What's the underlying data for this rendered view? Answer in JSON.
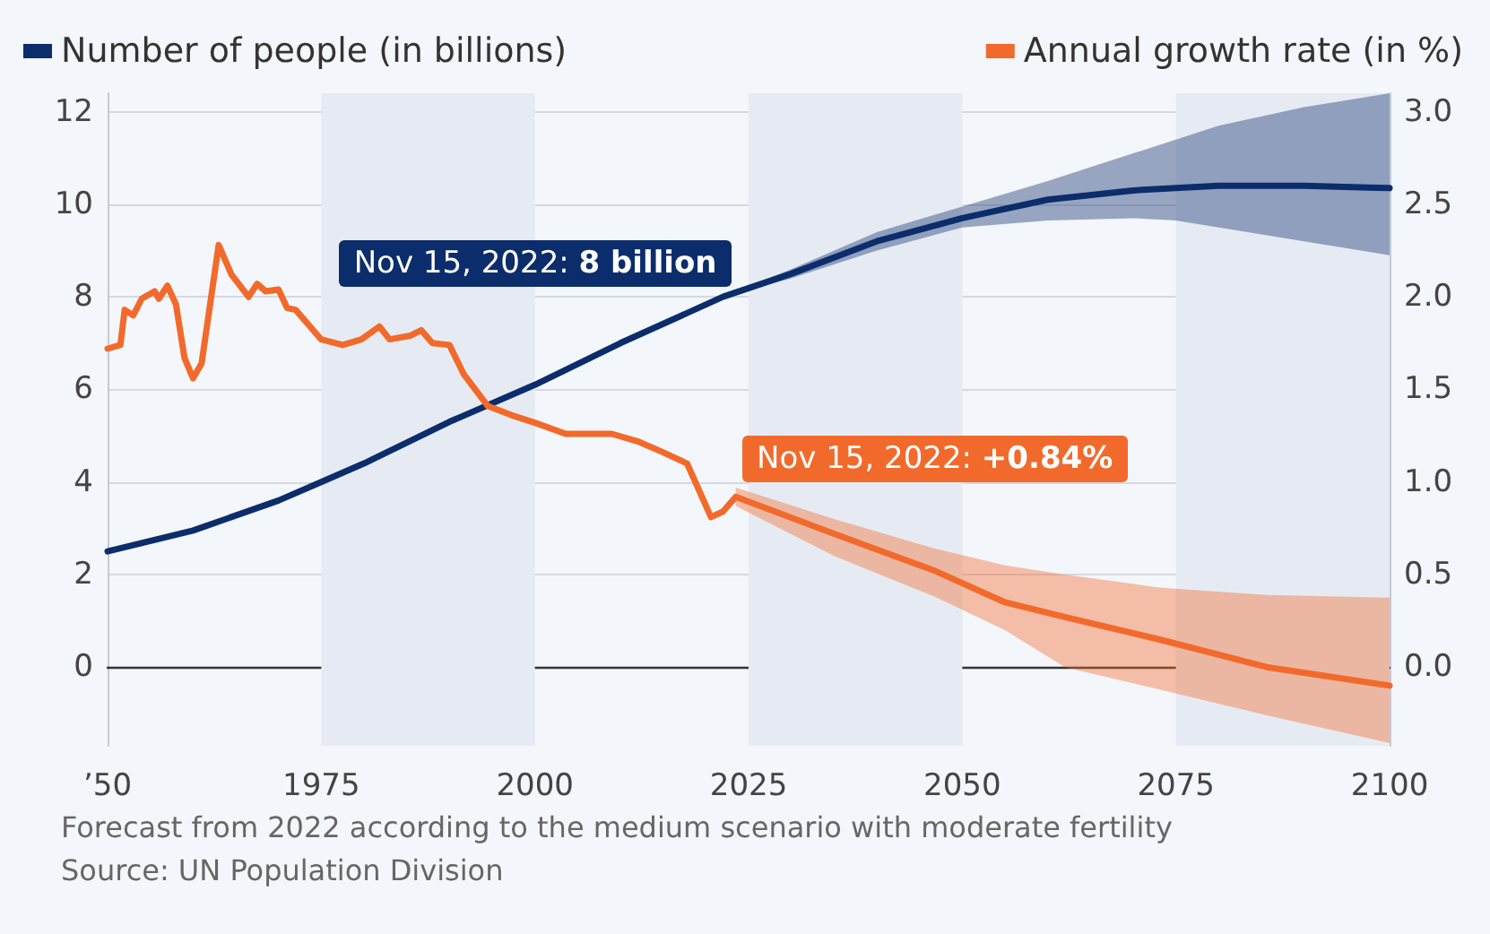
{
  "chart_data": {
    "type": "line",
    "legend": "top",
    "grid": "y",
    "marker": "none",
    "line_style": "solid",
    "xlim": [
      1950,
      2100
    ],
    "xticks": [
      {
        "value": 1950,
        "label": "’50"
      },
      1975,
      2000,
      2025,
      2050,
      2075,
      2100
    ],
    "ylim": [
      -1.7,
      12.4
    ],
    "yticks": [
      0,
      2,
      4,
      6,
      8,
      10,
      12
    ],
    "y2lim": [
      -0.425,
      3.1
    ],
    "y2ticks": [
      {
        "value": 0,
        "label": "0.0"
      },
      0.5,
      {
        "value": 1,
        "label": "1.0"
      },
      1.5,
      {
        "value": 2,
        "label": "2.0"
      },
      2.5,
      {
        "value": 3,
        "label": "3.0"
      }
    ],
    "series": [
      {
        "name": "Number of people (in billions)",
        "color": "#0c2d6b",
        "x": [
          1950,
          1960,
          1970,
          1975,
          1980,
          1990,
          2000,
          2010,
          2022,
          2030,
          2040,
          2050,
          2060,
          2070,
          2075,
          2080,
          2090,
          2100
        ],
        "values": [
          2.5,
          2.95,
          3.6,
          4.0,
          4.4,
          5.3,
          6.1,
          7.0,
          8.0,
          8.5,
          9.2,
          9.7,
          10.1,
          10.3,
          10.35,
          10.4,
          10.4,
          10.35
        ],
        "lower": [
          null,
          null,
          null,
          null,
          null,
          null,
          null,
          null,
          8.0,
          8.4,
          9.0,
          9.5,
          9.65,
          9.7,
          9.65,
          9.5,
          9.2,
          8.9
        ],
        "upper": [
          null,
          null,
          null,
          null,
          null,
          null,
          null,
          null,
          8.0,
          8.6,
          9.4,
          9.95,
          10.5,
          11.1,
          11.4,
          11.7,
          12.1,
          12.4
        ]
      },
      {
        "name": "Annual growth rate (in %)",
        "color": "#f26a2b",
        "axis": "y2",
        "x": [
          1950,
          1951.5,
          1952,
          1953,
          1954,
          1955.5,
          1956,
          1957,
          1958,
          1959,
          1960,
          1961,
          1963,
          1964.5,
          1966.5,
          1967.5,
          1968.5,
          1970,
          1971,
          1972,
          1975,
          1977.5,
          1979.7,
          1981.8,
          1983,
          1985.4,
          1986.7,
          1988,
          1990,
          1991.7,
          1994.5,
          1997.3,
          2000,
          2003.6,
          2009,
          2012,
          2015,
          2017.8,
          2020.6,
          2022,
          2023.5,
          2035,
          2046.8,
          2055,
          2062,
          2073,
          2085.6,
          2100
        ],
        "values": [
          1.72,
          1.74,
          1.93,
          1.9,
          1.99,
          2.03,
          1.99,
          2.06,
          1.96,
          1.67,
          1.56,
          1.64,
          2.28,
          2.12,
          2.0,
          2.07,
          2.03,
          2.04,
          1.94,
          1.93,
          1.77,
          1.74,
          1.77,
          1.84,
          1.77,
          1.79,
          1.82,
          1.75,
          1.74,
          1.58,
          1.41,
          1.36,
          1.32,
          1.26,
          1.26,
          1.22,
          1.16,
          1.1,
          0.81,
          0.84,
          0.92,
          0.72,
          0.52,
          0.35,
          0.27,
          0.15,
          0.0,
          -0.1
        ],
        "lower": [
          null,
          null,
          null,
          null,
          null,
          null,
          null,
          null,
          null,
          null,
          null,
          null,
          null,
          null,
          null,
          null,
          null,
          null,
          null,
          null,
          null,
          null,
          null,
          null,
          null,
          null,
          null,
          null,
          null,
          null,
          null,
          null,
          null,
          null,
          null,
          null,
          null,
          null,
          null,
          null,
          0.87,
          0.6,
          0.38,
          0.2,
          0.0,
          -0.12,
          -0.26,
          -0.41
        ],
        "upper": [
          null,
          null,
          null,
          null,
          null,
          null,
          null,
          null,
          null,
          null,
          null,
          null,
          null,
          null,
          null,
          null,
          null,
          null,
          null,
          null,
          null,
          null,
          null,
          null,
          null,
          null,
          null,
          null,
          null,
          null,
          null,
          null,
          null,
          null,
          null,
          null,
          null,
          null,
          null,
          null,
          0.97,
          0.8,
          0.64,
          0.55,
          0.5,
          0.43,
          0.39,
          0.375
        ]
      }
    ],
    "bands": [
      {
        "axis": "x",
        "from": 1975,
        "to": 2000,
        "color": "#e6ebf3"
      },
      {
        "axis": "x",
        "from": 2025,
        "to": 2050,
        "color": "#e6ebf3"
      },
      {
        "axis": "x",
        "from": 2075,
        "to": 2100,
        "color": "#e6ebf3"
      }
    ],
    "annotations": [
      {
        "text": "Nov 15, 2022: 8 billion",
        "x": 2022.87,
        "y": 8
      },
      "Nov 15, 2022: +0.84%",
      "Forecast from 2022 according to the medium scenario with moderate fertility",
      "Source: UN Population Division"
    ]
  }
}
